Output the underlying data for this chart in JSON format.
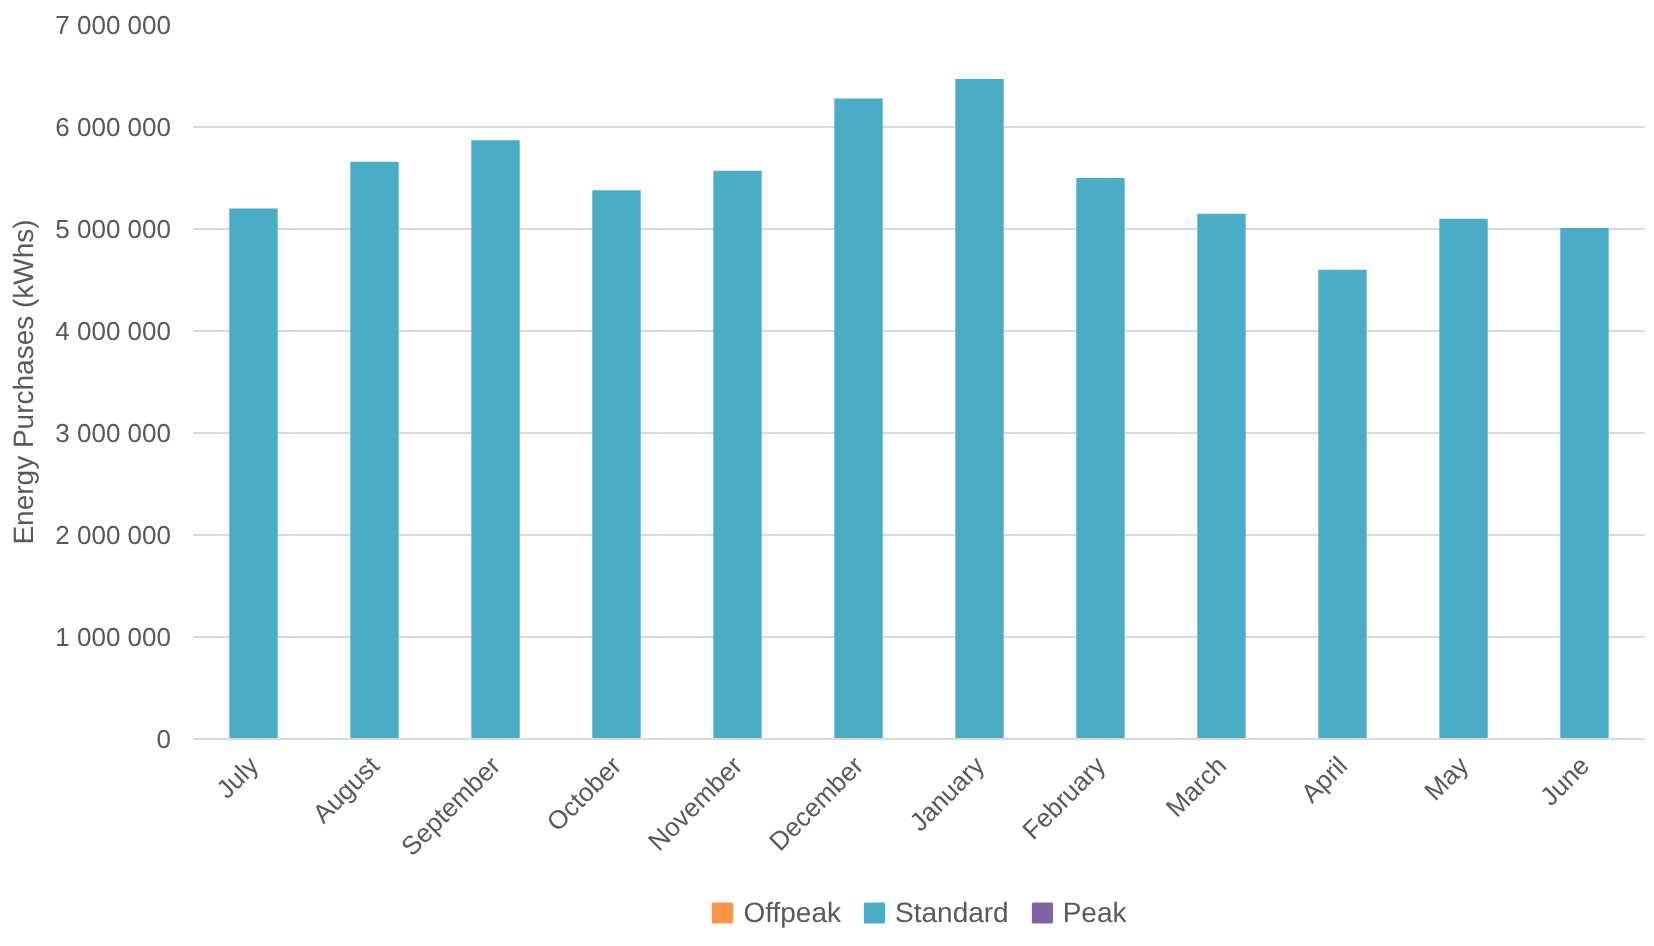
{
  "chart_data": {
    "type": "bar",
    "ylabel": "Energy Purchases (kWhs)",
    "stacked": true,
    "categories": [
      "July",
      "August",
      "September",
      "October",
      "November",
      "December",
      "January",
      "February",
      "March",
      "April",
      "May",
      "June"
    ],
    "series": [
      {
        "name": "Offpeak",
        "color": "#f79646",
        "values": [
          0,
          0,
          0,
          0,
          0,
          0,
          0,
          0,
          0,
          0,
          0,
          0
        ]
      },
      {
        "name": "Standard",
        "color": "#4bacc6",
        "values": [
          5200000,
          5660000,
          5870000,
          5380000,
          5570000,
          6280000,
          6470000,
          5500000,
          5150000,
          4600000,
          5100000,
          5010000
        ]
      },
      {
        "name": "Peak",
        "color": "#8064a2",
        "values": [
          0,
          0,
          0,
          0,
          0,
          0,
          0,
          0,
          0,
          0,
          0,
          0
        ]
      }
    ],
    "ylim": [
      0,
      7000000
    ],
    "yticks": [
      {
        "value": 0,
        "label": "0"
      },
      {
        "value": 1000000,
        "label": "1 000 000"
      },
      {
        "value": 2000000,
        "label": "2 000 000"
      },
      {
        "value": 3000000,
        "label": "3 000 000"
      },
      {
        "value": 4000000,
        "label": "4 000 000"
      },
      {
        "value": 5000000,
        "label": "5 000 000"
      },
      {
        "value": 6000000,
        "label": "6 000 000"
      },
      {
        "value": 7000000,
        "label": "7 000 000"
      }
    ],
    "grid": "y",
    "legend": "bottom"
  }
}
